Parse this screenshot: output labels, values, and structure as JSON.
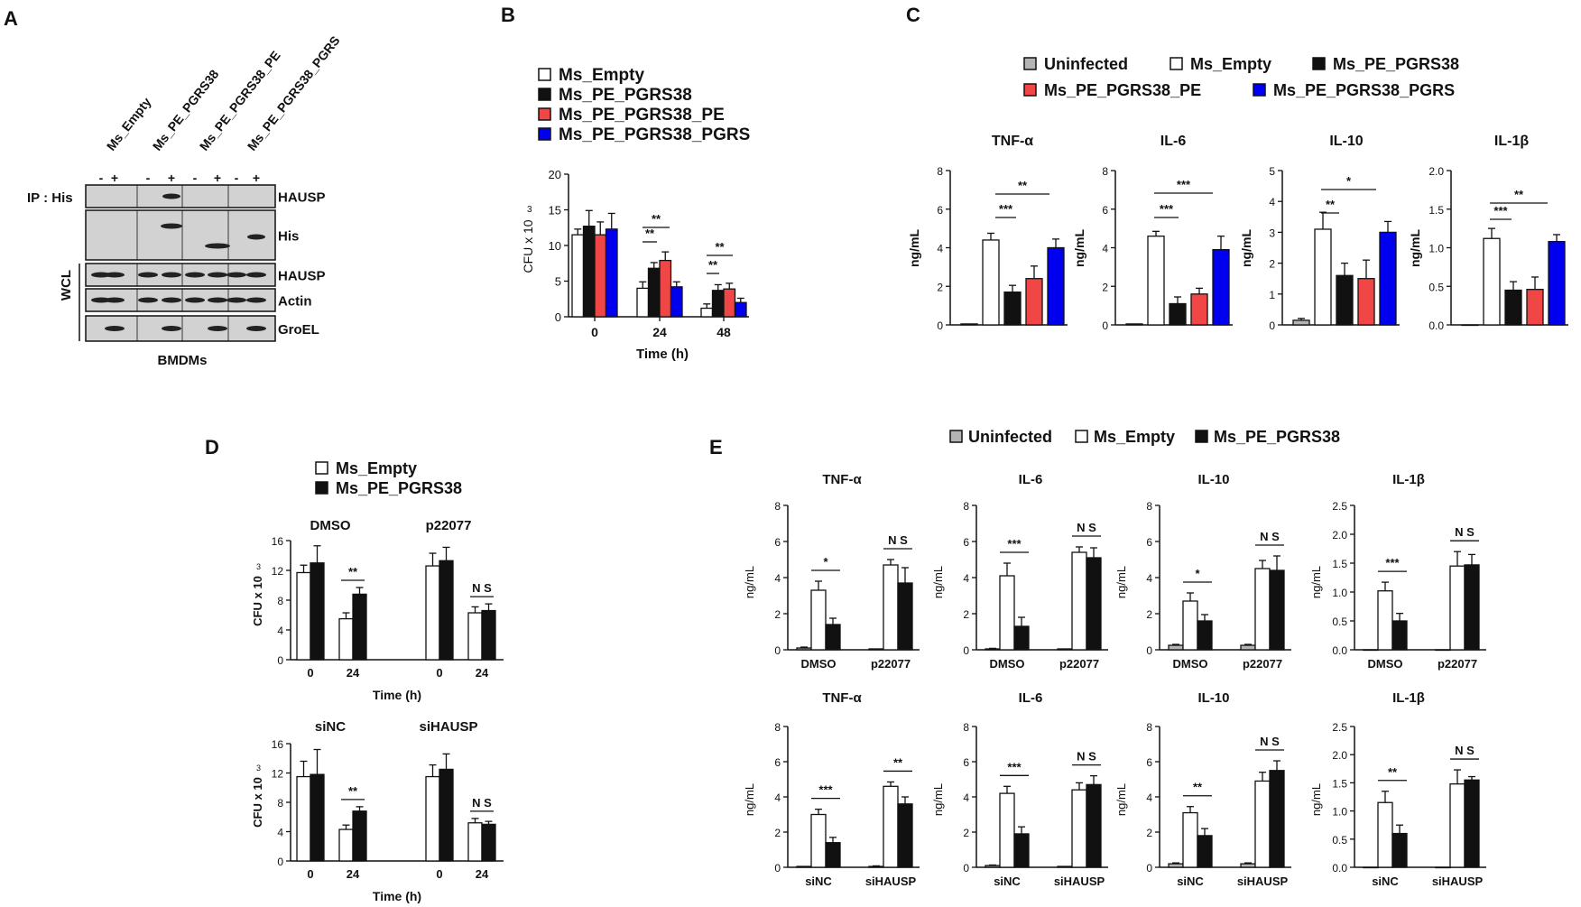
{
  "panel_labels": {
    "A": "A",
    "B": "B",
    "C": "C",
    "D": "D",
    "E": "E"
  },
  "colors": {
    "white": "#ffffff",
    "black": "#111111",
    "red": "#f04646",
    "blue": "#0000ee",
    "gray": "#b4b4b4",
    "blot": "#d2d2d2"
  },
  "panel_a": {
    "lanes": [
      "Ms_Empty",
      "Ms_PE_PGRS38",
      "Ms_PE_PGRS38_PE",
      "Ms_PE_PGRS38_PGRS"
    ],
    "signs": [
      "-",
      "+",
      "-",
      "+",
      "-",
      "+",
      "-",
      "+"
    ],
    "ip_label": "IP : His",
    "wcl_label": "WCL",
    "rows": [
      "HAUSP",
      "His",
      "HAUSP",
      "Actin",
      "GroEL"
    ],
    "footer": "BMDMs"
  },
  "chart_data": [
    {
      "id": "B",
      "type": "bar",
      "title": "",
      "legend": [
        "Ms_Empty",
        "Ms_PE_PGRS38",
        "Ms_PE_PGRS38_PE",
        "Ms_PE_PGRS38_PGRS"
      ],
      "categories": [
        "0",
        "24",
        "48"
      ],
      "series": [
        {
          "name": "Ms_Empty",
          "values": [
            11.5,
            4,
            1.2
          ],
          "errors": [
            0.8,
            0.9,
            0.6
          ]
        },
        {
          "name": "Ms_PE_PGRS38",
          "values": [
            12.7,
            6.8,
            3.7
          ],
          "errors": [
            2.2,
            0.8,
            0.8
          ]
        },
        {
          "name": "Ms_PE_PGRS38_PE",
          "values": [
            11.5,
            7.9,
            3.9
          ],
          "errors": [
            1.8,
            1.2,
            0.8
          ]
        },
        {
          "name": "Ms_PE_PGRS38_PGRS",
          "values": [
            12.3,
            4.2,
            2
          ],
          "errors": [
            2.2,
            0.7,
            0.6
          ]
        }
      ],
      "ylim": [
        0,
        20
      ],
      "yticks": [
        "0",
        "5",
        "10",
        "15",
        "20"
      ],
      "ylabel": "CFU x 10",
      "ylabel_sup": "3",
      "xlabel": "Time (h)",
      "significance": [
        {
          "label": "**"
        },
        {
          "label": "**"
        },
        {
          "label": "**"
        },
        {
          "label": "**"
        }
      ]
    },
    {
      "id": "C",
      "type": "bar",
      "group_legend": [
        "Uninfected",
        "Ms_Empty",
        "Ms_PE_PGRS38",
        "Ms_PE_PGRS38_PE",
        "Ms_PE_PGRS38_PGRS"
      ],
      "subplots": [
        {
          "title": "TNF-α",
          "ylabel": "ng/mL",
          "ylim": [
            0,
            8
          ],
          "yticks": [
            "0",
            "2",
            "4",
            "6",
            "8"
          ],
          "values": [
            0.05,
            4.4,
            1.7,
            2.4,
            4.0
          ],
          "errors": [
            0.02,
            0.35,
            0.35,
            0.65,
            0.45
          ],
          "significance": [
            {
              "label": "***"
            },
            {
              "label": "**"
            }
          ]
        },
        {
          "title": "IL-6",
          "ylabel": "ng/mL",
          "ylim": [
            0,
            8
          ],
          "yticks": [
            "0",
            "2",
            "4",
            "6",
            "8"
          ],
          "values": [
            0.05,
            4.6,
            1.1,
            1.6,
            3.9
          ],
          "errors": [
            0.02,
            0.25,
            0.35,
            0.3,
            0.7
          ],
          "significance": [
            {
              "label": "***"
            },
            {
              "label": "***"
            }
          ]
        },
        {
          "title": "IL-10",
          "ylabel": "ng/mL",
          "ylim": [
            0,
            5
          ],
          "yticks": [
            "0",
            "1",
            "2",
            "3",
            "4",
            "5"
          ],
          "values": [
            0.15,
            3.1,
            1.6,
            1.5,
            3.0
          ],
          "errors": [
            0.06,
            0.55,
            0.4,
            0.6,
            0.35
          ],
          "significance": [
            {
              "label": "**"
            },
            {
              "label": "*"
            }
          ]
        },
        {
          "title": "IL-1β",
          "ylabel": "ng/mL",
          "ylim": [
            0,
            2
          ],
          "yticks": [
            "0.0",
            "0.5",
            "1.0",
            "1.5",
            "2.0"
          ],
          "values": [
            0,
            1.12,
            0.45,
            0.46,
            1.08
          ],
          "errors": [
            0,
            0.13,
            0.11,
            0.16,
            0.09
          ],
          "significance": [
            {
              "label": "***"
            },
            {
              "label": "**"
            }
          ]
        }
      ]
    },
    {
      "id": "D",
      "type": "bar",
      "legend": [
        "Ms_Empty",
        "Ms_PE_PGRS38"
      ],
      "rows": [
        {
          "groups": [
            {
              "title": "DMSO",
              "categories": [
                "0",
                "24"
              ],
              "empty": [
                11.7,
                5.5
              ],
              "empty_err": [
                1,
                0.8
              ],
              "pgrs": [
                13.0,
                8.8
              ],
              "pgrs_err": [
                2.3,
                0.9
              ],
              "sig": "**"
            },
            {
              "title": "p22077",
              "categories": [
                "0",
                "24"
              ],
              "empty": [
                12.6,
                6.3
              ],
              "empty_err": [
                1.7,
                0.8
              ],
              "pgrs": [
                13.3,
                6.6
              ],
              "pgrs_err": [
                1.8,
                0.9
              ],
              "sig": "N S"
            }
          ],
          "ylim": [
            0,
            16
          ],
          "yticks": [
            "0",
            "4",
            "8",
            "12",
            "16"
          ],
          "ylabel": "CFU x 10",
          "ylabel_sup": "3",
          "xlabel": "Time (h)"
        },
        {
          "groups": [
            {
              "title": "siNC",
              "categories": [
                "0",
                "24"
              ],
              "empty": [
                11.5,
                4.3
              ],
              "empty_err": [
                2.1,
                0.6
              ],
              "pgrs": [
                11.8,
                6.8
              ],
              "pgrs_err": [
                3.4,
                0.6
              ],
              "sig": "**"
            },
            {
              "title": "siHAUSP",
              "categories": [
                "0",
                "24"
              ],
              "empty": [
                11.5,
                5.2
              ],
              "empty_err": [
                1.6,
                0.6
              ],
              "pgrs": [
                12.5,
                5.0
              ],
              "pgrs_err": [
                2.1,
                0.4
              ],
              "sig": "N S"
            }
          ],
          "ylim": [
            0,
            16
          ],
          "yticks": [
            "0",
            "4",
            "8",
            "12",
            "16"
          ],
          "ylabel": "CFU x 10",
          "ylabel_sup": "3",
          "xlabel": "Time (h)"
        }
      ]
    },
    {
      "id": "E",
      "type": "bar",
      "legend": [
        "Uninfected",
        "Ms_Empty",
        "Ms_PE_PGRS38"
      ],
      "rows": [
        {
          "groups": [
            "DMSO",
            "p22077"
          ],
          "subplots": [
            {
              "title": "TNF-α",
              "ylim": [
                0,
                8
              ],
              "yticks": [
                "0",
                "2",
                "4",
                "6",
                "8"
              ],
              "values": [
                [
                  0.1,
                  3.3,
                  1.4
                ],
                [
                  0.05,
                  4.7,
                  3.7
                ]
              ],
              "errors": [
                [
                  0.05,
                  0.5,
                  0.35
                ],
                [
                  0.02,
                  0.3,
                  0.85
                ]
              ],
              "sig": [
                "*",
                "N S"
              ]
            },
            {
              "title": "IL-6",
              "ylim": [
                0,
                8
              ],
              "yticks": [
                "0",
                "2",
                "4",
                "6",
                "8"
              ],
              "values": [
                [
                  0.05,
                  4.1,
                  1.3
                ],
                [
                  0.05,
                  5.4,
                  5.1
                ]
              ],
              "errors": [
                [
                  0.03,
                  0.7,
                  0.5
                ],
                [
                  0.02,
                  0.3,
                  0.55
                ]
              ],
              "sig": [
                "***",
                "N S"
              ]
            },
            {
              "title": "IL-10",
              "ylim": [
                0,
                8
              ],
              "yticks": [
                "0",
                "2",
                "4",
                "6",
                "8"
              ],
              "values": [
                [
                  0.25,
                  2.7,
                  1.6
                ],
                [
                  0.25,
                  4.5,
                  4.4
                ]
              ],
              "errors": [
                [
                  0.05,
                  0.45,
                  0.35
                ],
                [
                  0.05,
                  0.45,
                  0.8
                ]
              ],
              "sig": [
                "*",
                "N S"
              ]
            },
            {
              "title": "IL-1β",
              "ylim": [
                0,
                2.5
              ],
              "yticks": [
                "0.0",
                "0.5",
                "1.0",
                "1.5",
                "2.0",
                "2.5"
              ],
              "values": [
                [
                  0,
                  1.02,
                  0.5
                ],
                [
                  0,
                  1.45,
                  1.47
                ]
              ],
              "errors": [
                [
                  0,
                  0.15,
                  0.13
                ],
                [
                  0,
                  0.25,
                  0.18
                ]
              ],
              "sig": [
                "***",
                "N S"
              ]
            }
          ]
        },
        {
          "groups": [
            "siNC",
            "siHAUSP"
          ],
          "subplots": [
            {
              "title": "TNF-α",
              "ylim": [
                0,
                8
              ],
              "yticks": [
                "0",
                "2",
                "4",
                "6",
                "8"
              ],
              "values": [
                [
                  0.05,
                  3.0,
                  1.4
                ],
                [
                  0.05,
                  4.6,
                  3.6
                ]
              ],
              "errors": [
                [
                  0.02,
                  0.3,
                  0.3
                ],
                [
                  0.03,
                  0.25,
                  0.4
                ]
              ],
              "sig": [
                "***",
                "**"
              ]
            },
            {
              "title": "IL-6",
              "ylim": [
                0,
                8
              ],
              "yticks": [
                "0",
                "2",
                "4",
                "6",
                "8"
              ],
              "values": [
                [
                  0.1,
                  4.2,
                  1.9
                ],
                [
                  0.05,
                  4.4,
                  4.7
                ]
              ],
              "errors": [
                [
                  0.03,
                  0.4,
                  0.4
                ],
                [
                  0.02,
                  0.4,
                  0.5
                ]
              ],
              "sig": [
                "***",
                "N S"
              ]
            },
            {
              "title": "IL-10",
              "ylim": [
                0,
                8
              ],
              "yticks": [
                "0",
                "2",
                "4",
                "6",
                "8"
              ],
              "values": [
                [
                  0.2,
                  3.1,
                  1.8
                ],
                [
                  0.2,
                  4.9,
                  5.5
                ]
              ],
              "errors": [
                [
                  0.05,
                  0.35,
                  0.4
                ],
                [
                  0.05,
                  0.5,
                  0.55
                ]
              ],
              "sig": [
                "**",
                "N S"
              ]
            },
            {
              "title": "IL-1β",
              "ylim": [
                0,
                2.5
              ],
              "yticks": [
                "0.0",
                "0.5",
                "1.0",
                "1.5",
                "2.0",
                "2.5"
              ],
              "values": [
                [
                  0,
                  1.15,
                  0.6
                ],
                [
                  0,
                  1.48,
                  1.55
                ]
              ],
              "errors": [
                [
                  0,
                  0.2,
                  0.15
                ],
                [
                  0,
                  0.25,
                  0.06
                ]
              ],
              "sig": [
                "**",
                "N S"
              ]
            }
          ]
        }
      ],
      "ylabel": "ng/mL"
    }
  ]
}
